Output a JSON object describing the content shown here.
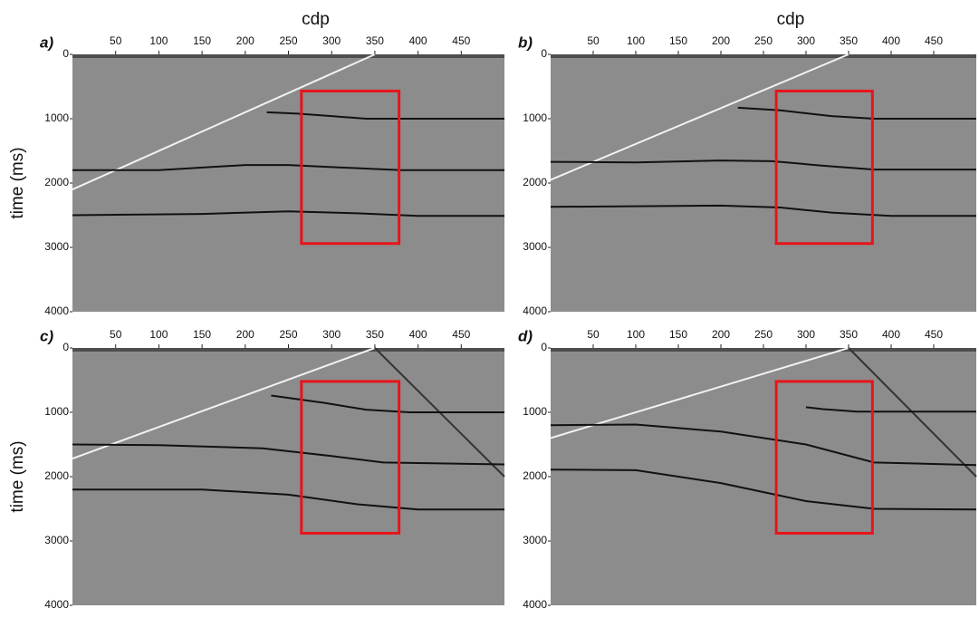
{
  "chart_data": [
    {
      "type": "seismic",
      "panel_label": "a)",
      "x_label": "cdp",
      "y_label": "time (ms)",
      "xlim": [
        0,
        500
      ],
      "xticks": [
        50,
        100,
        150,
        200,
        250,
        300,
        350,
        400,
        450
      ],
      "ylim": [
        0,
        4000
      ],
      "yticks": [
        0,
        1000,
        2000,
        3000,
        4000
      ],
      "y_inverted": true,
      "background": "#8c8c8c",
      "series": [
        {
          "color": "#f2f2f2",
          "x": [
            0,
            350
          ],
          "values": [
            2100,
            0
          ]
        },
        {
          "color": "#111111",
          "x": [
            225,
            260,
            300,
            340,
            500
          ],
          "values": [
            900,
            920,
            960,
            1000,
            1000
          ]
        },
        {
          "color": "#111111",
          "x": [
            0,
            100,
            200,
            250,
            330,
            380,
            500
          ],
          "values": [
            1800,
            1800,
            1720,
            1720,
            1770,
            1800,
            1800
          ]
        },
        {
          "color": "#111111",
          "x": [
            0,
            150,
            250,
            330,
            400,
            500
          ],
          "values": [
            2500,
            2480,
            2440,
            2470,
            2510,
            2510
          ]
        }
      ],
      "highlight": {
        "x": [
          265,
          378
        ],
        "y": [
          570,
          2940
        ],
        "color": "#e8141b"
      }
    },
    {
      "type": "seismic",
      "panel_label": "b)",
      "x_label": "cdp",
      "xlim": [
        0,
        500
      ],
      "xticks": [
        50,
        100,
        150,
        200,
        250,
        300,
        350,
        400,
        450
      ],
      "ylim": [
        0,
        4000
      ],
      "yticks": [
        0,
        1000,
        2000,
        3000,
        4000
      ],
      "y_inverted": true,
      "background": "#8c8c8c",
      "series": [
        {
          "color": "#f2f2f2",
          "x": [
            0,
            350
          ],
          "values": [
            1950,
            0
          ]
        },
        {
          "color": "#111111",
          "x": [
            220,
            270,
            330,
            380,
            500
          ],
          "values": [
            830,
            870,
            960,
            1000,
            1000
          ]
        },
        {
          "color": "#111111",
          "x": [
            0,
            100,
            200,
            260,
            320,
            380,
            500
          ],
          "values": [
            1670,
            1680,
            1650,
            1660,
            1730,
            1790,
            1790
          ]
        },
        {
          "color": "#111111",
          "x": [
            0,
            200,
            270,
            330,
            400,
            500
          ],
          "values": [
            2370,
            2350,
            2380,
            2460,
            2510,
            2510
          ]
        }
      ],
      "highlight": {
        "x": [
          265,
          378
        ],
        "y": [
          570,
          2940
        ],
        "color": "#e8141b"
      }
    },
    {
      "type": "seismic",
      "panel_label": "c)",
      "y_label": "time (ms)",
      "xlim": [
        0,
        500
      ],
      "xticks": [
        50,
        100,
        150,
        200,
        250,
        300,
        350,
        400,
        450
      ],
      "ylim": [
        0,
        4000
      ],
      "yticks": [
        0,
        1000,
        2000,
        3000,
        4000
      ],
      "y_inverted": true,
      "background": "#8c8c8c",
      "series": [
        {
          "color": "#f2f2f2",
          "x": [
            0,
            350
          ],
          "values": [
            1720,
            0
          ]
        },
        {
          "color": "#333333",
          "x": [
            350,
            500
          ],
          "values": [
            0,
            2000
          ]
        },
        {
          "color": "#111111",
          "x": [
            230,
            290,
            340,
            390,
            500
          ],
          "values": [
            740,
            850,
            960,
            1000,
            1000
          ]
        },
        {
          "color": "#111111",
          "x": [
            0,
            100,
            220,
            300,
            360,
            500
          ],
          "values": [
            1500,
            1510,
            1560,
            1680,
            1780,
            1810
          ]
        },
        {
          "color": "#111111",
          "x": [
            0,
            150,
            250,
            330,
            400,
            500
          ],
          "values": [
            2200,
            2200,
            2280,
            2430,
            2510,
            2510
          ]
        }
      ],
      "highlight": {
        "x": [
          265,
          378
        ],
        "y": [
          520,
          2880
        ],
        "color": "#e8141b"
      }
    },
    {
      "type": "seismic",
      "panel_label": "d)",
      "xlim": [
        0,
        500
      ],
      "xticks": [
        50,
        100,
        150,
        200,
        250,
        300,
        350,
        400,
        450
      ],
      "ylim": [
        0,
        4000
      ],
      "yticks": [
        0,
        1000,
        2000,
        3000,
        4000
      ],
      "y_inverted": true,
      "background": "#8c8c8c",
      "series": [
        {
          "color": "#f2f2f2",
          "x": [
            0,
            350
          ],
          "values": [
            1400,
            0
          ]
        },
        {
          "color": "#333333",
          "x": [
            350,
            500
          ],
          "values": [
            0,
            2000
          ]
        },
        {
          "color": "#111111",
          "x": [
            300,
            320,
            360,
            500
          ],
          "values": [
            920,
            950,
            990,
            990
          ]
        },
        {
          "color": "#111111",
          "x": [
            0,
            100,
            200,
            300,
            380,
            500
          ],
          "values": [
            1200,
            1190,
            1300,
            1500,
            1780,
            1820
          ]
        },
        {
          "color": "#111111",
          "x": [
            0,
            100,
            200,
            300,
            380,
            500
          ],
          "values": [
            1890,
            1900,
            2100,
            2380,
            2500,
            2510
          ]
        }
      ],
      "highlight": {
        "x": [
          265,
          378
        ],
        "y": [
          520,
          2880
        ],
        "color": "#e8141b"
      }
    }
  ]
}
